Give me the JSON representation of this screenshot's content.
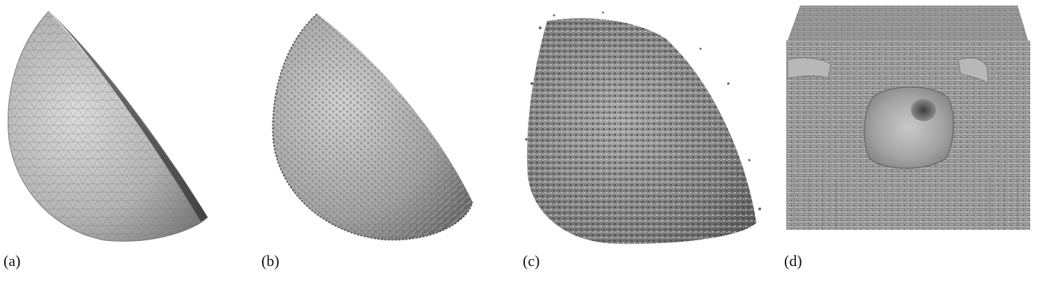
{
  "panels": [
    {
      "id": "a",
      "label": "(a)",
      "depiction": "smooth-mesh-hemisphere"
    },
    {
      "id": "b",
      "label": "(b)",
      "depiction": "noisy-mesh-hemisphere"
    },
    {
      "id": "c",
      "label": "(c)",
      "depiction": "fragmented-noisy-hemisphere"
    },
    {
      "id": "d",
      "label": "(d)",
      "depiction": "volume-rendering-cube"
    }
  ],
  "colors": {
    "background": "#ffffff",
    "surface_light": "#c8c8c8",
    "surface_mid": "#9a9a9a",
    "surface_dark": "#555555",
    "caption": "#111111"
  }
}
